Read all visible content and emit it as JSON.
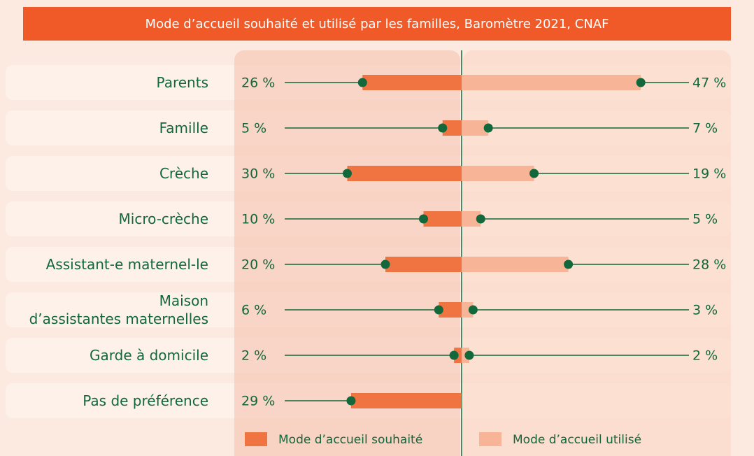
{
  "chart_data": {
    "type": "diverging_bar",
    "title": "Mode d’accueil souhaité et utilisé par les familles, Baromètre 2021, CNAF",
    "categories": [
      "Parents",
      "Famille",
      "Crèche",
      "Micro-crèche",
      "Assistant-e maternel-le",
      "Maison\nd’assistantes maternelles",
      "Garde à domicile",
      "Pas de préférence"
    ],
    "series": [
      {
        "name": "Mode d’accueil souhaité",
        "color": "#f07442",
        "side": "left",
        "values": [
          26,
          5,
          30,
          10,
          20,
          6,
          2,
          29
        ],
        "value_labels": [
          "26 %",
          "5 %",
          "30 %",
          "10 %",
          "20 %",
          "6 %",
          "2 %",
          "29 %"
        ]
      },
      {
        "name": "Mode d’accueil utilisé",
        "color": "#f8b497",
        "side": "right",
        "values": [
          47,
          7,
          19,
          5,
          28,
          3,
          2,
          null
        ],
        "value_labels": [
          "47 %",
          "7 %",
          "19 %",
          "5 %",
          "28 %",
          "3 %",
          "2 %",
          null
        ]
      }
    ],
    "marker_color": "#12683a"
  }
}
